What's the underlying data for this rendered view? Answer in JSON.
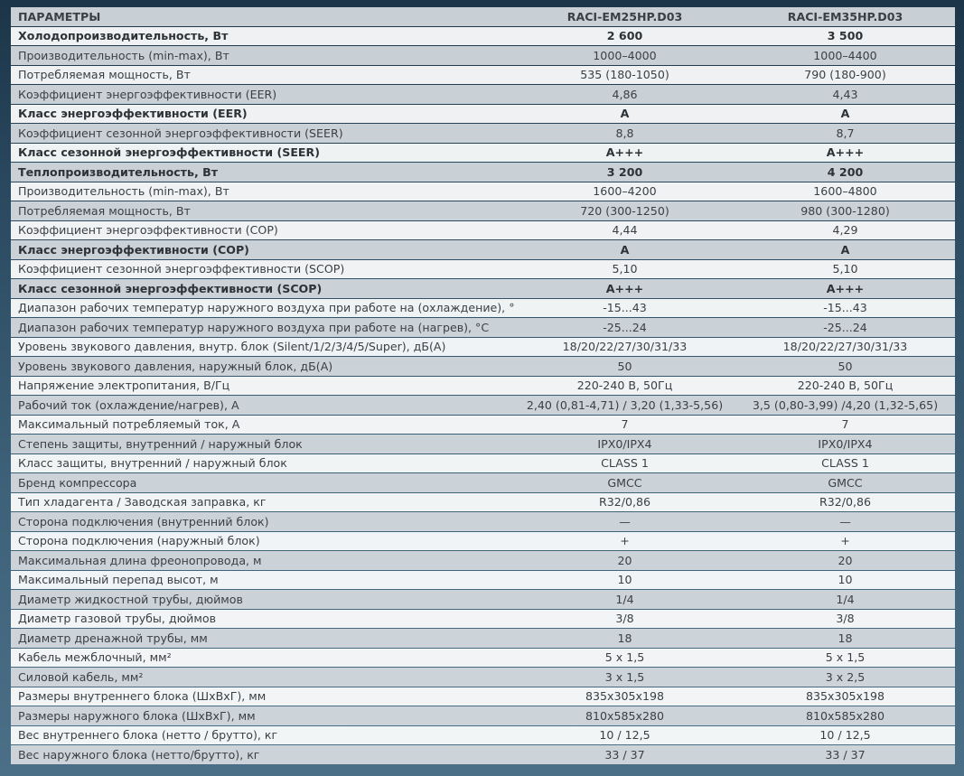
{
  "header": {
    "param": "ПАРАМЕТРЫ",
    "model1": "RACI-EM25HP.D03",
    "model2": "RACI-EM35HP.D03"
  },
  "rows": [
    {
      "label": "Холодопроизводительность, Вт",
      "v1": "2 600",
      "v2": "3 500",
      "bold": true
    },
    {
      "label": "Производительность (min-max), Вт",
      "v1": "1000–4000",
      "v2": "1000–4400",
      "bold": false
    },
    {
      "label": "Потребляемая мощность, Вт",
      "v1": "535 (180-1050)",
      "v2": "790 (180-900)",
      "bold": false
    },
    {
      "label": "Коэффициент энергоэффективности (EER)",
      "v1": "4,86",
      "v2": "4,43",
      "bold": false
    },
    {
      "label": "Класс энергоэффективности (EER)",
      "v1": "A",
      "v2": "A",
      "bold": true
    },
    {
      "label": "Коэффициент сезонной энергоэффективности (SEER)",
      "v1": "8,8",
      "v2": "8,7",
      "bold": false
    },
    {
      "label": "Класс сезонной энергоэффективности (SEER)",
      "v1": "A+++",
      "v2": "A+++",
      "bold": true
    },
    {
      "label": "Теплопроизводительность, Вт",
      "v1": "3 200",
      "v2": "4 200",
      "bold": true
    },
    {
      "label": "Производительность (min-max), Вт",
      "v1": "1600–4200",
      "v2": "1600–4800",
      "bold": false
    },
    {
      "label": "Потребляемая мощность, Вт",
      "v1": "720 (300-1250)",
      "v2": "980 (300-1280)",
      "bold": false
    },
    {
      "label": "Коэффициент энергоэффективности (COP)",
      "v1": "4,44",
      "v2": "4,29",
      "bold": false
    },
    {
      "label": "Класс энергоэффективности (COP)",
      "v1": "A",
      "v2": "A",
      "bold": true
    },
    {
      "label": "Коэффициент сезонной энергоэффективности (SCOP)",
      "v1": "5,10",
      "v2": "5,10",
      "bold": false
    },
    {
      "label": "Класс сезонной энергоэффективности (SCOP)",
      "v1": "A+++",
      "v2": "A+++",
      "bold": true
    },
    {
      "label": "Диапазон рабочих температур наружного воздуха при работе на (охлаждение), °С",
      "v1": "-15...43",
      "v2": "-15...43",
      "bold": false
    },
    {
      "label": "Диапазон рабочих температур наружного воздуха при работе на (нагрев), °С",
      "v1": "-25...24",
      "v2": "-25...24",
      "bold": false
    },
    {
      "label": "Уровень звукового давления, внутр. блок (Silent/1/2/3/4/5/Super), дБ(А)",
      "v1": "18/20/22/27/30/31/33",
      "v2": "18/20/22/27/30/31/33",
      "bold": false
    },
    {
      "label": "Уровень звукового давления, наружный блок, дБ(А)",
      "v1": "50",
      "v2": "50",
      "bold": false
    },
    {
      "label": "Напряжение электропитания, В/Гц",
      "v1": "220-240 В, 50Гц",
      "v2": "220-240 В, 50Гц",
      "bold": false
    },
    {
      "label": "Рабочий ток (охлаждение/нагрев), А",
      "v1": "2,40 (0,81-4,71) / 3,20 (1,33-5,56)",
      "v2": "3,5 (0,80-3,99) /4,20 (1,32-5,65)",
      "bold": false
    },
    {
      "label": "Максимальный потребляемый ток, А",
      "v1": "7",
      "v2": "7",
      "bold": false
    },
    {
      "label": "Степень защиты, внутренний / наружный блок",
      "v1": "IPX0/IPX4",
      "v2": "IPX0/IPX4",
      "bold": false
    },
    {
      "label": "Класс защиты, внутренний / наружный блок",
      "v1": "CLASS 1",
      "v2": "CLASS 1",
      "bold": false
    },
    {
      "label": "Бренд компрессора",
      "v1": "GMCC",
      "v2": "GMCC",
      "bold": false
    },
    {
      "label": "Тип хладагента / Заводская заправка, кг",
      "v1": "R32/0,86",
      "v2": "R32/0,86",
      "bold": false
    },
    {
      "label": "Сторона подключения (внутренний блок)",
      "v1": "—",
      "v2": "—",
      "bold": false
    },
    {
      "label": "Сторона подключения (наружный блок)",
      "v1": "+",
      "v2": "+",
      "bold": false
    },
    {
      "label": "Максимальная длина фреонопровода, м",
      "v1": "20",
      "v2": "20",
      "bold": false
    },
    {
      "label": "Максимальный перепад высот, м",
      "v1": "10",
      "v2": "10",
      "bold": false
    },
    {
      "label": "Диаметр жидкостной трубы, дюймов",
      "v1": "1/4",
      "v2": "1/4",
      "bold": false
    },
    {
      "label": "Диаметр газовой трубы, дюймов",
      "v1": "3/8",
      "v2": "3/8",
      "bold": false
    },
    {
      "label": "Диаметр дренажной трубы, мм",
      "v1": "18",
      "v2": "18",
      "bold": false
    },
    {
      "label": "Кабель межблочный, мм²",
      "v1": "5 х 1,5",
      "v2": "5 х 1,5",
      "bold": false
    },
    {
      "label": "Силовой кабель, мм²",
      "v1": "3 х 1,5",
      "v2": "3 х 2,5",
      "bold": false
    },
    {
      "label": "Размеры внутреннего блока (ШхВхГ), мм",
      "v1": "835x305x198",
      "v2": "835x305x198",
      "bold": false
    },
    {
      "label": "Размеры наружного блока (ШхВхГ), мм",
      "v1": "810x585x280",
      "v2": "810x585x280",
      "bold": false
    },
    {
      "label": "Вес внутреннего блока (нетто / брутто), кг",
      "v1": "10 / 12,5",
      "v2": "10 / 12,5",
      "bold": false
    },
    {
      "label": "Вес наружного блока (нетто/брутто), кг",
      "v1": "33 / 37",
      "v2": "33 / 37",
      "bold": false
    }
  ]
}
